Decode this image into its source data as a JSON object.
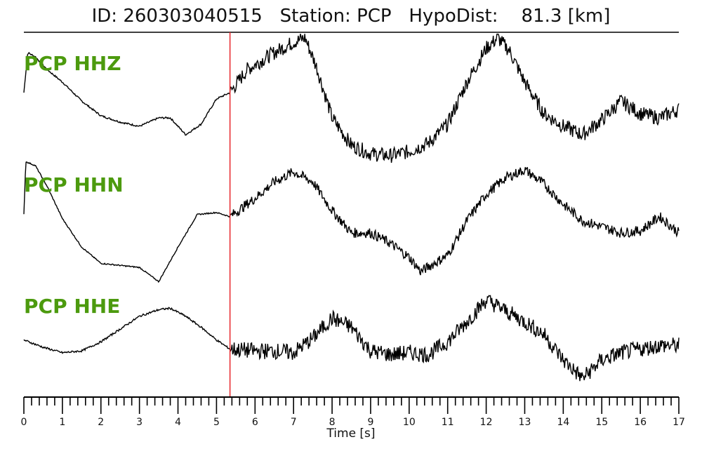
{
  "title": "ID: 260303040515   Station: PCP   HypoDist:    81.3 [km]",
  "colors": {
    "trace": "#000000",
    "pick_line": "#e8262b",
    "channel_label": "#4c9a0e"
  },
  "chart_data": {
    "type": "line",
    "title": "ID: 260303040515   Station: PCP   HypoDist:    81.3 [km]",
    "xlabel": "Time [s]",
    "ylabel": "",
    "xlim": [
      0,
      17
    ],
    "x_ticks": [
      "0",
      "1",
      "2",
      "3",
      "4",
      "5",
      "6",
      "7",
      "8",
      "9",
      "10",
      "11",
      "12",
      "13",
      "14",
      "15",
      "16",
      "17"
    ],
    "minor_tick_step": 0.2,
    "grid": false,
    "legend": "none",
    "pick_time": 5.35,
    "series": [
      {
        "name": "PCP HHZ",
        "noise": 0.35,
        "points": [
          [
            0,
            0.05
          ],
          [
            0.1,
            1.0
          ],
          [
            0.3,
            0.9
          ],
          [
            0.6,
            0.6
          ],
          [
            1.0,
            0.3
          ],
          [
            1.5,
            -0.15
          ],
          [
            2.0,
            -0.5
          ],
          [
            2.5,
            -0.65
          ],
          [
            3.0,
            -0.75
          ],
          [
            3.5,
            -0.55
          ],
          [
            3.8,
            -0.55
          ],
          [
            4.2,
            -0.95
          ],
          [
            4.6,
            -0.7
          ],
          [
            5.0,
            -0.1
          ],
          [
            5.35,
            0.05
          ],
          [
            5.8,
            0.6
          ],
          [
            6.5,
            1.0
          ],
          [
            7.0,
            1.25
          ],
          [
            7.3,
            1.35
          ],
          [
            7.6,
            0.65
          ],
          [
            8.0,
            -0.55
          ],
          [
            8.5,
            -1.2
          ],
          [
            9.0,
            -1.4
          ],
          [
            9.5,
            -1.45
          ],
          [
            10.0,
            -1.35
          ],
          [
            10.5,
            -1.15
          ],
          [
            11.0,
            -0.7
          ],
          [
            11.5,
            0.3
          ],
          [
            12.0,
            1.1
          ],
          [
            12.3,
            1.35
          ],
          [
            12.6,
            1.05
          ],
          [
            13.0,
            0.3
          ],
          [
            13.5,
            -0.45
          ],
          [
            14.0,
            -0.75
          ],
          [
            14.5,
            -0.95
          ],
          [
            15.0,
            -0.6
          ],
          [
            15.5,
            -0.15
          ],
          [
            16.0,
            -0.45
          ],
          [
            16.5,
            -0.55
          ],
          [
            17.0,
            -0.35
          ]
        ]
      },
      {
        "name": "PCP HHN",
        "noise": 0.25,
        "points": [
          [
            0,
            -0.1
          ],
          [
            0.05,
            1.2
          ],
          [
            0.3,
            1.1
          ],
          [
            0.6,
            0.6
          ],
          [
            1.0,
            -0.2
          ],
          [
            1.5,
            -0.9
          ],
          [
            2.0,
            -1.3
          ],
          [
            2.5,
            -1.35
          ],
          [
            3.0,
            -1.4
          ],
          [
            3.5,
            -1.75
          ],
          [
            4.0,
            -0.9
          ],
          [
            4.5,
            -0.1
          ],
          [
            5.0,
            -0.05
          ],
          [
            5.35,
            -0.15
          ],
          [
            6.0,
            0.3
          ],
          [
            6.5,
            0.7
          ],
          [
            7.0,
            0.95
          ],
          [
            7.5,
            0.7
          ],
          [
            8.0,
            0.0
          ],
          [
            8.5,
            -0.55
          ],
          [
            9.0,
            -0.55
          ],
          [
            9.5,
            -0.8
          ],
          [
            10.0,
            -1.15
          ],
          [
            10.3,
            -1.5
          ],
          [
            11.0,
            -1.1
          ],
          [
            11.5,
            -0.25
          ],
          [
            12.0,
            0.4
          ],
          [
            12.5,
            0.8
          ],
          [
            13.0,
            1.0
          ],
          [
            13.5,
            0.65
          ],
          [
            14.0,
            0.15
          ],
          [
            14.5,
            -0.25
          ],
          [
            15.0,
            -0.4
          ],
          [
            15.5,
            -0.55
          ],
          [
            16.0,
            -0.5
          ],
          [
            16.5,
            -0.15
          ],
          [
            17.0,
            -0.55
          ]
        ]
      },
      {
        "name": "PCP HHE",
        "noise": 0.45,
        "points": [
          [
            0,
            -0.05
          ],
          [
            0.5,
            -0.25
          ],
          [
            1.0,
            -0.4
          ],
          [
            1.5,
            -0.35
          ],
          [
            2.0,
            -0.1
          ],
          [
            2.5,
            0.25
          ],
          [
            3.0,
            0.6
          ],
          [
            3.5,
            0.78
          ],
          [
            3.8,
            0.82
          ],
          [
            4.2,
            0.6
          ],
          [
            4.6,
            0.3
          ],
          [
            5.0,
            -0.05
          ],
          [
            5.35,
            -0.3
          ],
          [
            6.0,
            -0.35
          ],
          [
            6.5,
            -0.35
          ],
          [
            7.0,
            -0.4
          ],
          [
            7.5,
            0.0
          ],
          [
            8.0,
            0.55
          ],
          [
            8.5,
            0.3
          ],
          [
            9.0,
            -0.35
          ],
          [
            9.5,
            -0.45
          ],
          [
            10.0,
            -0.4
          ],
          [
            10.5,
            -0.45
          ],
          [
            11.0,
            -0.1
          ],
          [
            11.5,
            0.45
          ],
          [
            12.0,
            1.05
          ],
          [
            12.5,
            0.75
          ],
          [
            13.0,
            0.45
          ],
          [
            13.5,
            0.1
          ],
          [
            14.0,
            -0.6
          ],
          [
            14.5,
            -1.1
          ],
          [
            15.0,
            -0.6
          ],
          [
            15.5,
            -0.4
          ],
          [
            16.0,
            -0.3
          ],
          [
            16.5,
            -0.2
          ],
          [
            17.0,
            -0.2
          ]
        ]
      }
    ]
  }
}
